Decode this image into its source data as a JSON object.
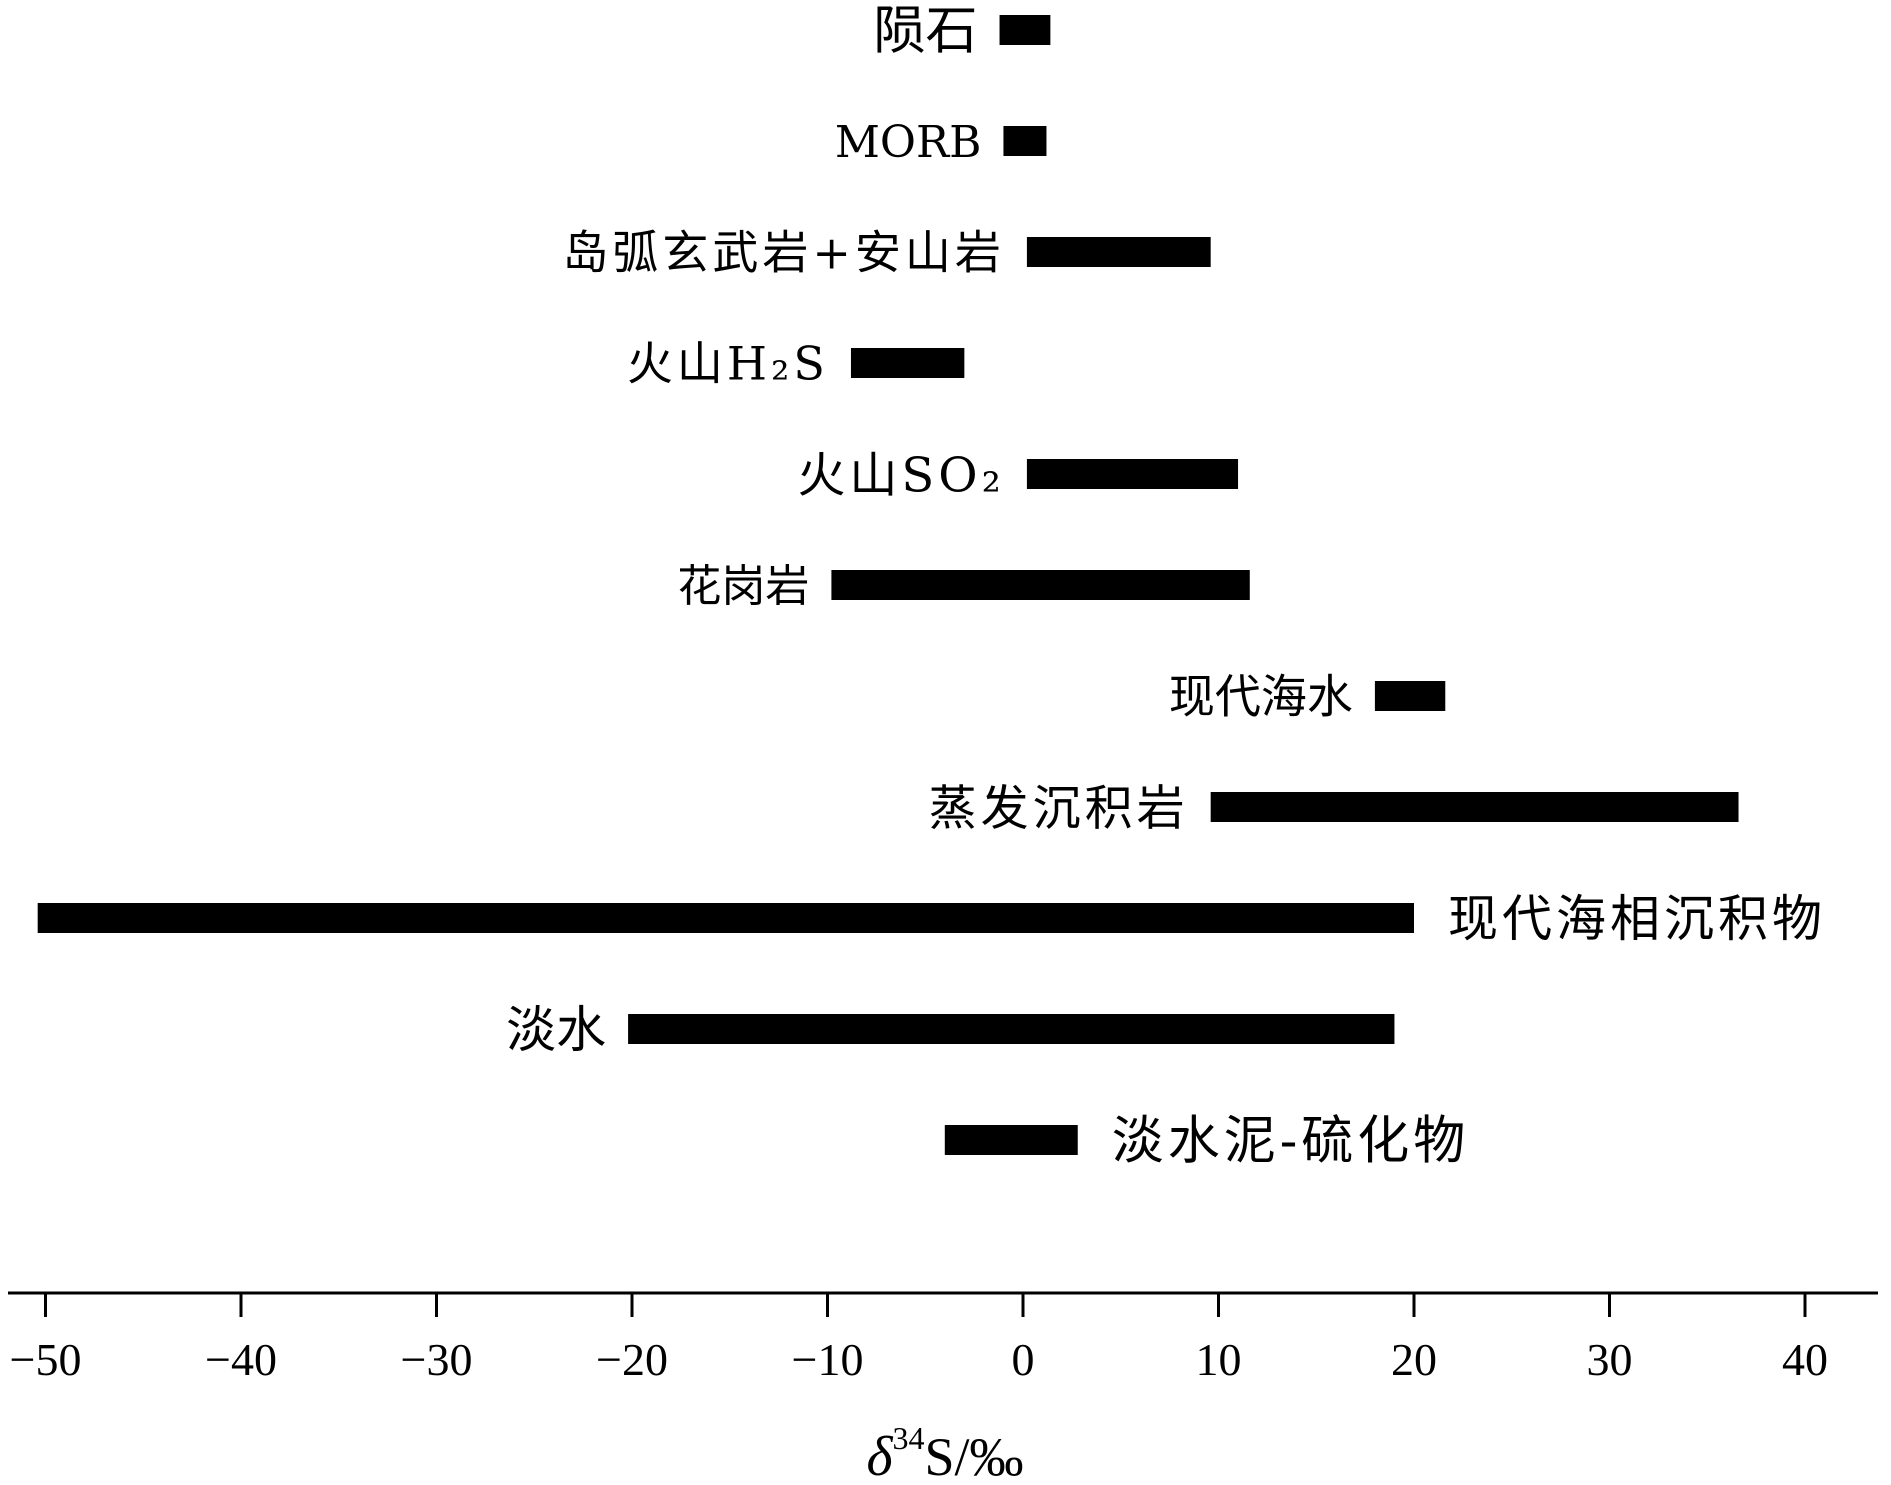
{
  "chart_data": {
    "type": "bar",
    "orientation": "horizontal-range",
    "xlabel": "δ³⁴S/‰",
    "xlim": [
      -51,
      41
    ],
    "ticks": [
      -50,
      -40,
      -30,
      -20,
      -10,
      0,
      10,
      20,
      30,
      40
    ],
    "tick_labels": [
      "−50",
      "−40",
      "−30",
      "−20",
      "−10",
      "0",
      "10",
      "20",
      "30",
      "40"
    ],
    "grid": false,
    "categories": [
      "陨石",
      "MORB",
      "岛弧玄武岩+安山岩",
      "火山H₂S",
      "火山SO₂",
      "花岗岩",
      "现代海水",
      "蒸发沉积岩",
      "现代海相沉积物",
      "淡水",
      "淡水泥-硫化物"
    ],
    "series": [
      {
        "ranges": [
          [
            -1.2,
            1.4
          ],
          [
            -1,
            1.2
          ],
          [
            0.2,
            9.6
          ],
          [
            -8.8,
            -3
          ],
          [
            0.2,
            11
          ],
          [
            -9.8,
            11.6
          ],
          [
            18,
            21.6
          ],
          [
            9.6,
            36.6
          ],
          [
            -50.4,
            20
          ],
          [
            -20.2,
            19
          ],
          [
            -4,
            2.8
          ]
        ],
        "label_side": [
          "left",
          "left",
          "left",
          "left",
          "left",
          "left",
          "left",
          "left",
          "right",
          "left",
          "right"
        ]
      }
    ]
  }
}
